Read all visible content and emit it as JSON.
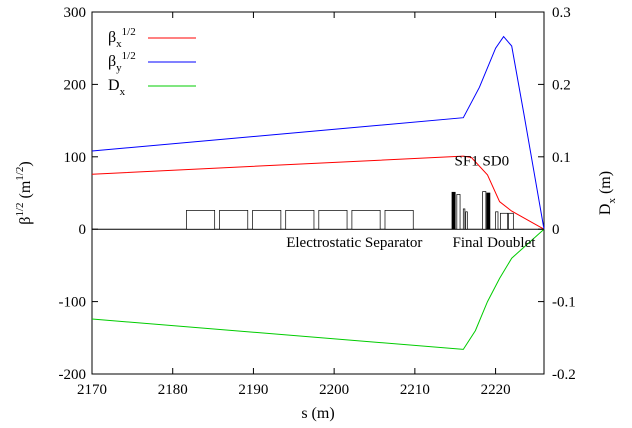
{
  "chart_data": {
    "type": "line",
    "xlabel": "s (m)",
    "ylabel_left": "β1/2 (m1/2)",
    "ylabel_right": "Dx (m)",
    "xlim": [
      2170,
      2226
    ],
    "ylim_left": [
      -200,
      300
    ],
    "ylim_right": [
      -0.2,
      0.3
    ],
    "x_ticks": [
      2170,
      2180,
      2190,
      2200,
      2210,
      2220
    ],
    "y_ticks_left": [
      -200,
      -100,
      0,
      100,
      200,
      300
    ],
    "y_ticks_right": [
      "-0.2",
      "-0.1",
      "0",
      "0.1",
      "0.2",
      "0.3"
    ],
    "grid": false,
    "legend_position": "top-left",
    "series": [
      {
        "name": "βx1/2",
        "legend_main": "β",
        "legend_sub": "x",
        "legend_sup": "1/2",
        "color": "#ff0000",
        "axis": "left",
        "x": [
          2170,
          2216,
          2217,
          2219,
          2220.5,
          2222,
          2226
        ],
        "y": [
          76,
          101,
          99,
          75,
          38,
          25,
          0
        ]
      },
      {
        "name": "βy1/2",
        "legend_main": "β",
        "legend_sub": "y",
        "legend_sup": "1/2",
        "color": "#0000ff",
        "axis": "left",
        "x": [
          2170,
          2216,
          2218,
          2220,
          2221,
          2222,
          2223.5,
          2226
        ],
        "y": [
          108,
          154,
          196,
          250,
          266,
          253,
          160,
          0
        ]
      },
      {
        "name": "Dx",
        "legend_main": "D",
        "legend_sub": "x",
        "legend_sup": "",
        "color": "#00cc00",
        "axis": "right",
        "x": [
          2170,
          2216,
          2217.5,
          2219,
          2220.5,
          2222,
          2226
        ],
        "y": [
          -0.124,
          -0.166,
          -0.14,
          -0.1,
          -0.068,
          -0.04,
          0
        ]
      }
    ],
    "annotations": [
      {
        "text": "Electrostatic Separator",
        "x": 2202.5,
        "y": -18
      },
      {
        "text": "Final Doublet",
        "x": 2219.8,
        "y": -18
      },
      {
        "text": "SF1 SD0",
        "x": 2218.3,
        "y": 95
      }
    ]
  }
}
